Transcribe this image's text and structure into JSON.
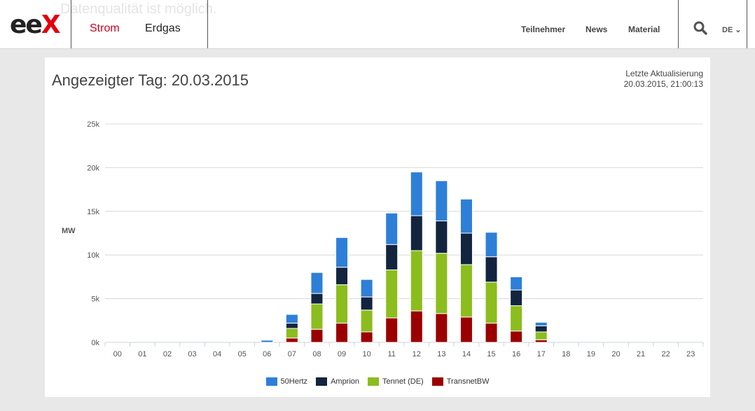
{
  "header": {
    "ghost_text": "Datenqualität ist möglich.",
    "logo_e": "ee",
    "logo_x": "X",
    "nav_primary": [
      "Strom",
      "Erdgas"
    ],
    "nav_secondary": [
      "Teilnehmer",
      "News",
      "Material"
    ],
    "lang": "DE"
  },
  "panel": {
    "title": "Angezeigter Tag: 20.03.2015",
    "update_label": "Letzte Aktualisierung",
    "update_value": "20.03.2015, 21:00:13"
  },
  "colors": {
    "50Hertz": "#2e7fd8",
    "Amprion": "#13243f",
    "Tennet (DE)": "#8cbd1e",
    "TransnetBW": "#9b0000",
    "accent": "#d0021b"
  },
  "chart_data": {
    "type": "bar",
    "stacked": true,
    "ylabel": "MW",
    "xlabel": "",
    "ylim": [
      0,
      25000
    ],
    "yticks": [
      0,
      5000,
      10000,
      15000,
      20000,
      25000
    ],
    "ytick_labels": [
      "0k",
      "5k",
      "10k",
      "15k",
      "20k",
      "25k"
    ],
    "grid": true,
    "legend": "bottom-center",
    "categories": [
      "00",
      "01",
      "02",
      "03",
      "04",
      "05",
      "06",
      "07",
      "08",
      "09",
      "10",
      "11",
      "12",
      "13",
      "14",
      "15",
      "16",
      "17",
      "18",
      "19",
      "20",
      "21",
      "22",
      "23"
    ],
    "series": [
      {
        "name": "TransnetBW",
        "values": [
          0,
          0,
          0,
          0,
          0,
          0,
          0,
          500,
          1500,
          2200,
          1200,
          2800,
          3600,
          3300,
          2900,
          2200,
          1300,
          300,
          0,
          0,
          0,
          0,
          0,
          0
        ]
      },
      {
        "name": "Tennet (DE)",
        "values": [
          0,
          0,
          0,
          0,
          0,
          0,
          0,
          1100,
          2900,
          4400,
          2500,
          5500,
          6900,
          6900,
          6000,
          4700,
          2900,
          900,
          0,
          0,
          0,
          0,
          0,
          0
        ]
      },
      {
        "name": "Amprion",
        "values": [
          0,
          0,
          0,
          0,
          0,
          0,
          0,
          600,
          1200,
          2000,
          1500,
          2900,
          4000,
          3700,
          3600,
          2900,
          1800,
          700,
          0,
          0,
          0,
          0,
          0,
          0
        ]
      },
      {
        "name": "50Hertz",
        "values": [
          0,
          0,
          0,
          0,
          0,
          0,
          250,
          1000,
          2400,
          3400,
          2000,
          3600,
          5000,
          4600,
          3900,
          2800,
          1500,
          400,
          0,
          0,
          0,
          0,
          0,
          0
        ]
      }
    ]
  }
}
